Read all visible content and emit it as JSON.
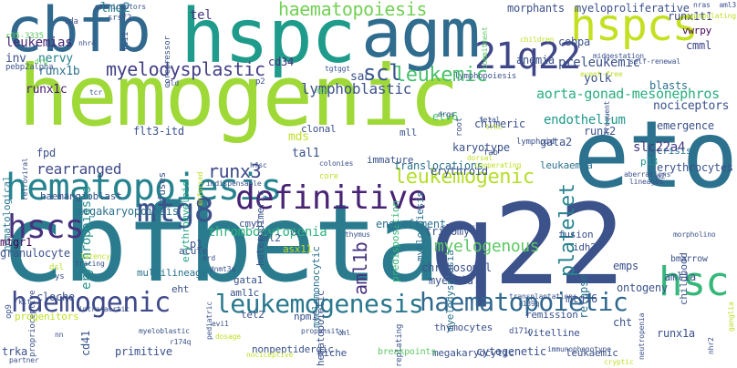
{
  "word_cloud": {
    "words": [
      {
        "text": "hemogenic",
        "color": "#9fd938"
      },
      {
        "text": "cbfbeta",
        "color": "#2a7b8e"
      },
      {
        "text": "q22",
        "color": "#3b528b"
      },
      {
        "text": "eto",
        "color": "#2c718e"
      },
      {
        "text": "hspc",
        "color": "#1e9b8a"
      },
      {
        "text": "agm",
        "color": "#2f6c8e"
      },
      {
        "text": "cbfb",
        "color": "#31688e"
      },
      {
        "text": "hspcs",
        "color": "#c4e021"
      },
      {
        "text": "21q22",
        "color": "#3f4788"
      },
      {
        "text": "hematopoiesis",
        "color": "#26838f"
      },
      {
        "text": "definitive",
        "color": "#482475"
      },
      {
        "text": "hscs",
        "color": "#46327e"
      },
      {
        "text": "mtg8",
        "color": "#3b528b"
      },
      {
        "text": "haemogenic",
        "color": "#3e4a89"
      },
      {
        "text": "leukemogenesis",
        "color": "#2a788e"
      },
      {
        "text": "hsc",
        "color": "#35b779"
      },
      {
        "text": "haematopoietic",
        "color": "#31688e"
      },
      {
        "text": "myelodysplastic",
        "color": "#424086"
      },
      {
        "text": "leukemogenic",
        "color": "#b5de2b"
      },
      {
        "text": "platelet",
        "color": "#26828e"
      },
      {
        "text": "scl",
        "color": "#39568c"
      },
      {
        "text": "aml1b",
        "color": "#46307e"
      },
      {
        "text": "myelogenous",
        "color": "#5cc863"
      },
      {
        "text": "runx3",
        "color": "#3e4a89"
      },
      {
        "text": "thrombocytopenia",
        "color": "#2db27d"
      },
      {
        "text": "leukemic",
        "color": "#48c16e"
      },
      {
        "text": "lymphoblastic",
        "color": "#3b528b"
      },
      {
        "text": "haematopoiesis",
        "color": "#73d055"
      },
      {
        "text": "rearranged",
        "color": "#3e4a89"
      },
      {
        "text": "aorta-gonad-mesonephros",
        "color": "#29af7f"
      },
      {
        "text": "endothelium",
        "color": "#1f988b"
      },
      {
        "text": "nociceptors",
        "color": "#3b528b"
      },
      {
        "text": "preleukemic",
        "color": "#3b528b"
      },
      {
        "text": "slc22a4",
        "color": "#453781"
      },
      {
        "text": "erythropoiesis",
        "color": "#21918c"
      },
      {
        "text": "runx1b",
        "color": "#2c728e"
      },
      {
        "text": "runx1c",
        "color": "#481a6c"
      },
      {
        "text": "leukemias",
        "color": "#482677"
      },
      {
        "text": "lmo2",
        "color": "#26828e"
      },
      {
        "text": "tel",
        "color": "#453781"
      },
      {
        "text": "cebpa",
        "color": "#3b528b"
      },
      {
        "text": "anemia",
        "color": "#3b528b"
      },
      {
        "text": "yolk",
        "color": "#3b528b"
      },
      {
        "text": "blasts",
        "color": "#2c728e"
      },
      {
        "text": "cmml",
        "color": "#3f4788"
      },
      {
        "text": "vwrpy",
        "color": "#440154"
      },
      {
        "text": "runx1t1",
        "color": "#3e4a89"
      },
      {
        "text": "myeloproliferative",
        "color": "#3b528b"
      },
      {
        "text": "morphants",
        "color": "#3b528b"
      },
      {
        "text": "nervy",
        "color": "#26828e"
      },
      {
        "text": "inv",
        "color": "#3b528b"
      },
      {
        "text": "hematological",
        "color": "#2a788e"
      },
      {
        "text": "fpd",
        "color": "#3b528b"
      },
      {
        "text": "flt3-itd",
        "color": "#3b528b"
      },
      {
        "text": "erythromyeloid",
        "color": "#20a486"
      },
      {
        "text": "cd34",
        "color": "#46327e"
      },
      {
        "text": "sac",
        "color": "#3b528b"
      },
      {
        "text": "etv6",
        "color": "#48c16e"
      },
      {
        "text": "chimeric",
        "color": "#3b528b"
      },
      {
        "text": "emergence",
        "color": "#3b528b"
      },
      {
        "text": "runx2",
        "color": "#3b528b"
      },
      {
        "text": "crisis",
        "color": "#2c728e"
      },
      {
        "text": "p13",
        "color": "#21918c"
      },
      {
        "text": "gata2",
        "color": "#3b528b"
      },
      {
        "text": "karyotype",
        "color": "#3b528b"
      },
      {
        "text": "mds",
        "color": "#bddf26"
      },
      {
        "text": "tal1",
        "color": "#3b528b"
      },
      {
        "text": "clonal",
        "color": "#3b528b"
      },
      {
        "text": "mll",
        "color": "#3b528b"
      },
      {
        "text": "immature",
        "color": "#3b528b"
      },
      {
        "text": "predisposition",
        "color": "#35b779"
      },
      {
        "text": "myelopoiesis",
        "color": "#2c728e"
      },
      {
        "text": "translocations",
        "color": "#2c728e"
      },
      {
        "text": "erythroid",
        "color": "#3b528b"
      },
      {
        "text": "leukaemia",
        "color": "#2c728e"
      },
      {
        "text": "erythrocytes",
        "color": "#3b528b"
      },
      {
        "text": "childhood",
        "color": "#3b528b"
      },
      {
        "text": "megakaryopoiesis",
        "color": "#2c728e"
      },
      {
        "text": "haemangioblast",
        "color": "#3b528b"
      },
      {
        "text": "fuses",
        "color": "#3b528b"
      },
      {
        "text": "heterodimeric",
        "color": "#3b528b"
      },
      {
        "text": "myelomonocytic",
        "color": "#2c728e"
      },
      {
        "text": "hematopoietic",
        "color": "#3b528b"
      },
      {
        "text": "myelodysplasia",
        "color": "#2c728e"
      },
      {
        "text": "engraftment",
        "color": "#2c728e"
      },
      {
        "text": "trisomy",
        "color": "#3b528b"
      },
      {
        "text": "fusion",
        "color": "#3b528b"
      },
      {
        "text": "idh2",
        "color": "#3b528b"
      },
      {
        "text": "aml1a",
        "color": "#3b528b"
      },
      {
        "text": "bmarrow",
        "color": "#3b528b"
      },
      {
        "text": "mtgr1",
        "color": "#440154"
      },
      {
        "text": "granulocyte",
        "color": "#3b528b"
      },
      {
        "text": "acute",
        "color": "#3b528b"
      },
      {
        "text": "p1",
        "color": "#3b528b"
      },
      {
        "text": "cmyb",
        "color": "#3b528b"
      },
      {
        "text": "aml2",
        "color": "#3b528b"
      },
      {
        "text": "asx11",
        "color": "#bddf26"
      },
      {
        "text": "chromosomal",
        "color": "#3b528b"
      },
      {
        "text": "myeloid",
        "color": "#3b528b"
      },
      {
        "text": "relapse",
        "color": "#2c728e"
      },
      {
        "text": "emps",
        "color": "#3b528b"
      },
      {
        "text": "ontogeny",
        "color": "#3b528b"
      },
      {
        "text": "cloche",
        "color": "#3b528b"
      },
      {
        "text": "cd41",
        "color": "#3b528b"
      },
      {
        "text": "eht",
        "color": "#3b528b"
      },
      {
        "text": "multilineage",
        "color": "#2c728e"
      },
      {
        "text": "gata1",
        "color": "#3b528b"
      },
      {
        "text": "aml1c",
        "color": "#3b528b"
      },
      {
        "text": "tet2",
        "color": "#3b528b"
      },
      {
        "text": "npm1",
        "color": "#3b528b"
      },
      {
        "text": "mtg16",
        "color": "#3b528b"
      },
      {
        "text": "cht",
        "color": "#3b528b"
      },
      {
        "text": "runx1a",
        "color": "#3b528b"
      },
      {
        "text": "trka",
        "color": "#3b528b"
      },
      {
        "text": "primitive",
        "color": "#3b528b"
      },
      {
        "text": "nonpeptidergic",
        "color": "#3b528b"
      },
      {
        "text": "megakaryocytic",
        "color": "#3b528b"
      },
      {
        "text": "cytogenetic",
        "color": "#3b528b"
      },
      {
        "text": "leukaemic",
        "color": "#3b528b"
      },
      {
        "text": "vitelline",
        "color": "#3b528b"
      },
      {
        "text": "remission",
        "color": "#3b528b"
      },
      {
        "text": "thymocytes",
        "color": "#3b528b"
      },
      {
        "text": "niche",
        "color": "#3b528b"
      },
      {
        "text": "breakpoints",
        "color": "#5cc863"
      },
      {
        "text": "r05-3335",
        "color": "#5cc863"
      },
      {
        "text": "pebp2alpha",
        "color": "#3b528b"
      },
      {
        "text": "vda",
        "color": "#3b528b"
      },
      {
        "text": "nhr4",
        "color": "#3b528b"
      },
      {
        "text": "srsf2",
        "color": "#3b528b"
      },
      {
        "text": "fli1",
        "color": "#3b528b"
      },
      {
        "text": "corepressor",
        "color": "#3b528b"
      },
      {
        "text": "pruriceptors",
        "color": "#3b528b"
      },
      {
        "text": "drg",
        "color": "#5cc863"
      },
      {
        "text": "tcr",
        "color": "#3b528b"
      },
      {
        "text": "dld",
        "color": "#3b528b"
      },
      {
        "text": "p2",
        "color": "#3b528b"
      },
      {
        "text": "mpo",
        "color": "#5cc863"
      },
      {
        "text": "lymphopoiesis",
        "color": "#3b528b"
      },
      {
        "text": "tgtggt",
        "color": "#3b528b"
      },
      {
        "text": "midgestation",
        "color": "#3b528b"
      },
      {
        "text": "event-free",
        "color": "#bddf26"
      },
      {
        "text": "self-renewal",
        "color": "#3b528b"
      },
      {
        "text": "children",
        "color": "#bddf26"
      },
      {
        "text": "commitment",
        "color": "#5cc863"
      },
      {
        "text": "nras",
        "color": "#3b528b"
      },
      {
        "text": "repopulating",
        "color": "#bddf26"
      },
      {
        "text": "aml3",
        "color": "#3b528b"
      },
      {
        "text": "drgs",
        "color": "#3b528b"
      },
      {
        "text": "root",
        "color": "#3b528b"
      },
      {
        "text": "fetal",
        "color": "#3b528b"
      },
      {
        "text": "trkc",
        "color": "#bddf26"
      },
      {
        "text": "lymphoid",
        "color": "#3b528b"
      },
      {
        "text": "fab",
        "color": "#3b528b"
      },
      {
        "text": "frequent",
        "color": "#3b528b"
      },
      {
        "text": "dorsal",
        "color": "#bddf26"
      },
      {
        "text": "cooperating",
        "color": "#bddf26"
      },
      {
        "text": "core",
        "color": "#bddf26"
      },
      {
        "text": "colonies",
        "color": "#3b528b"
      },
      {
        "text": "hfsc",
        "color": "#3b528b"
      },
      {
        "text": "enforced",
        "color": "#bddf26"
      },
      {
        "text": "indispensable",
        "color": "#3b528b"
      },
      {
        "text": "retroviral",
        "color": "#3b528b"
      },
      {
        "text": "aberrations",
        "color": "#3b528b"
      },
      {
        "text": "lineages",
        "color": "#3b528b"
      },
      {
        "text": "m2",
        "color": "#3b528b"
      },
      {
        "text": "vif",
        "color": "#3b528b"
      },
      {
        "text": "thymus",
        "color": "#3b528b"
      },
      {
        "text": "clusters",
        "color": "#3b528b"
      },
      {
        "text": "morpholino",
        "color": "#3b528b"
      },
      {
        "text": "latency",
        "color": "#bddf26"
      },
      {
        "text": "tracing",
        "color": "#3b528b"
      },
      {
        "text": "kit",
        "color": "#3b528b"
      },
      {
        "text": "proprioceptive",
        "color": "#3b528b"
      },
      {
        "text": "op9",
        "color": "#3b528b"
      },
      {
        "text": "intra-aortic",
        "color": "#3b528b"
      },
      {
        "text": "myeloblastic",
        "color": "#3b528b"
      },
      {
        "text": "partner",
        "color": "#3b528b"
      },
      {
        "text": "r174q",
        "color": "#3b528b"
      },
      {
        "text": "dosage",
        "color": "#bddf26"
      },
      {
        "text": "pediatric",
        "color": "#3b528b"
      },
      {
        "text": "evi1",
        "color": "#3b528b"
      },
      {
        "text": "nociceptive",
        "color": "#bddf26"
      },
      {
        "text": "propensity",
        "color": "#3b528b"
      },
      {
        "text": "cml",
        "color": "#3b528b"
      },
      {
        "text": "replating",
        "color": "#3b528b"
      },
      {
        "text": "d171n",
        "color": "#3b528b"
      },
      {
        "text": "immunophenotype",
        "color": "#3b528b"
      },
      {
        "text": "cryptic",
        "color": "#bddf26"
      },
      {
        "text": "neutropenia",
        "color": "#3b528b"
      },
      {
        "text": "ganglia",
        "color": "#bddf26"
      },
      {
        "text": "nhr2",
        "color": "#3b528b"
      },
      {
        "text": "r139q",
        "color": "#3b528b"
      },
      {
        "text": "transplantation",
        "color": "#3b528b"
      },
      {
        "text": "mrd",
        "color": "#3b528b"
      },
      {
        "text": "dnmt3a",
        "color": "#3b528b"
      },
      {
        "text": "progenitors",
        "color": "#bddf26"
      },
      {
        "text": "dsl",
        "color": "#bddf26"
      },
      {
        "text": "ys",
        "color": "#3b528b"
      },
      {
        "text": "nn",
        "color": "#3b528b"
      },
      {
        "text": "abi",
        "color": "#3b528b"
      },
      {
        "text": "disease",
        "color": "#3b528b"
      }
    ]
  }
}
